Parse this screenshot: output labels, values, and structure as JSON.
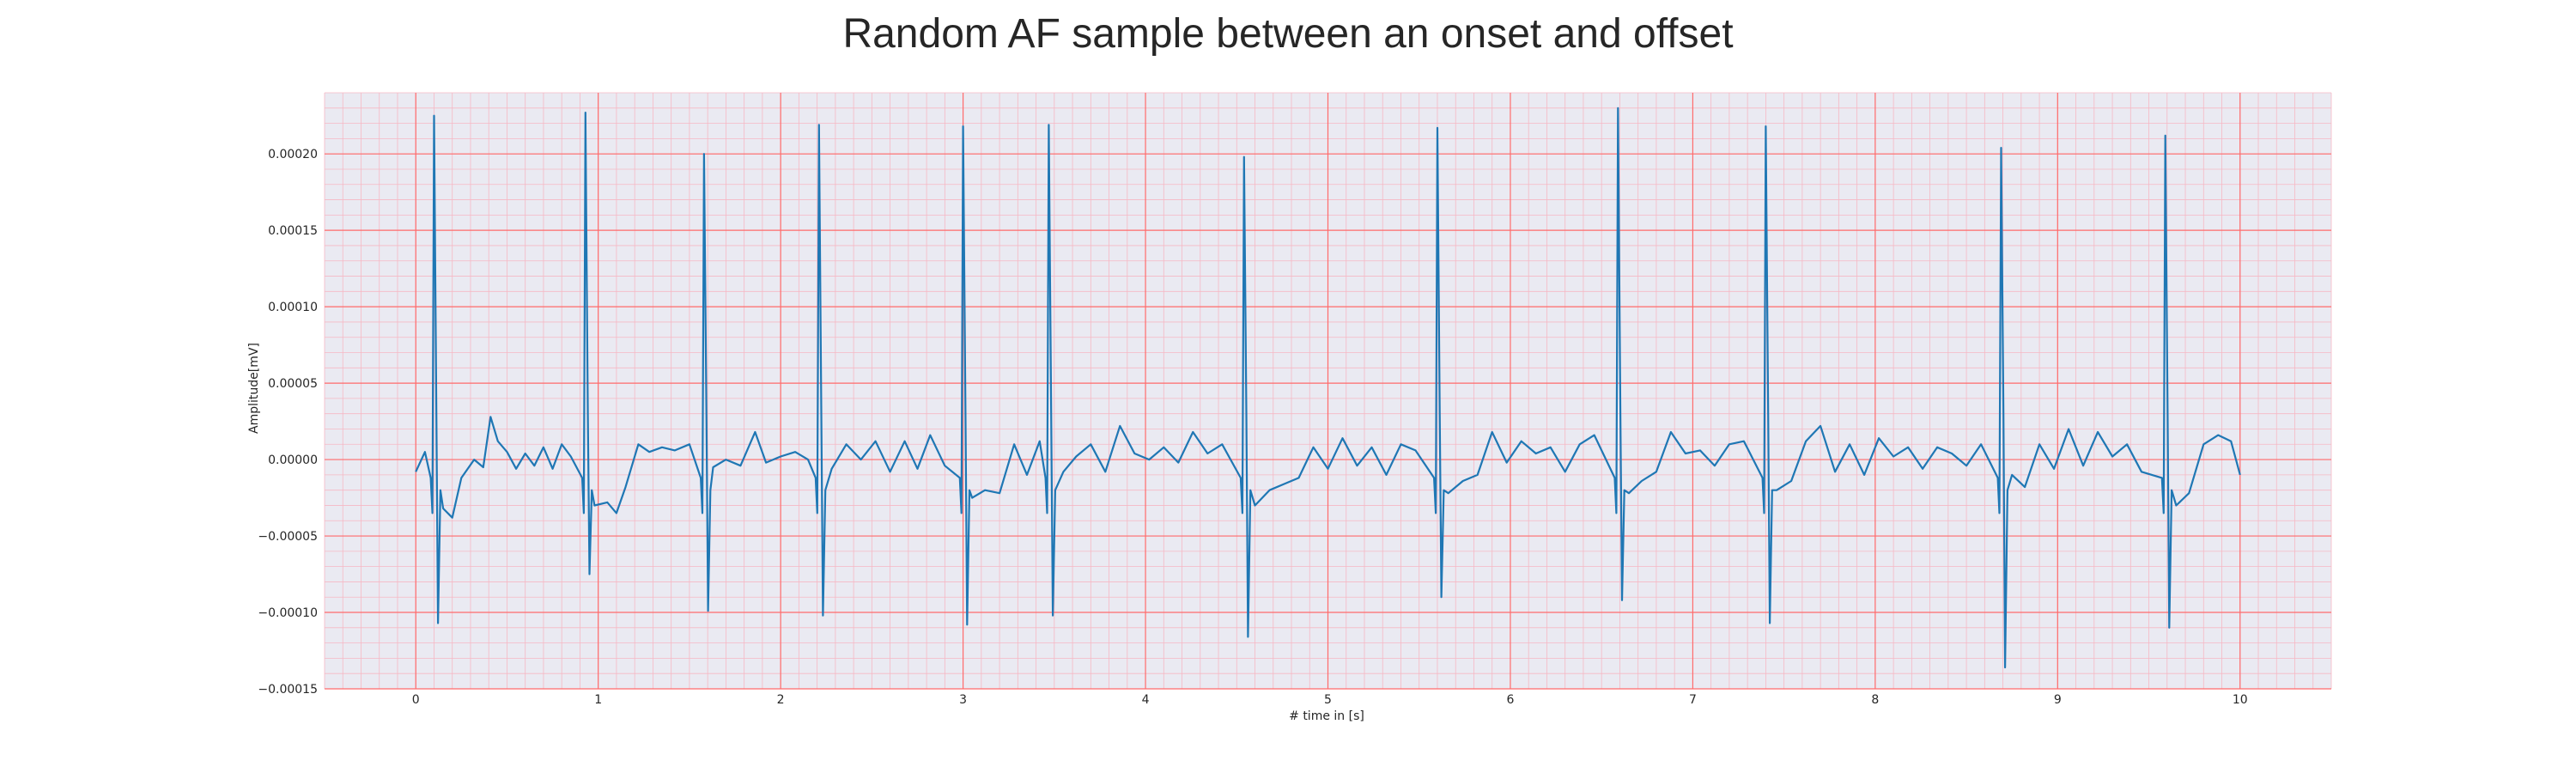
{
  "chart_data": {
    "type": "line",
    "title": "Random AF sample between an onset and offset",
    "xlabel": "# time in [s]",
    "ylabel": "Amplitude[mV]",
    "xlim": [
      -0.5,
      10.5
    ],
    "ylim": [
      -0.00015,
      0.00024
    ],
    "x_ticks": [
      0,
      1,
      2,
      3,
      4,
      5,
      6,
      7,
      8,
      9,
      10
    ],
    "x_tick_labels": [
      "0",
      "1",
      "2",
      "3",
      "4",
      "5",
      "6",
      "7",
      "8",
      "9",
      "10"
    ],
    "y_ticks": [
      -0.00015,
      -0.0001,
      -5e-05,
      0,
      5e-05,
      0.0001,
      0.00015,
      0.0002
    ],
    "y_tick_labels": [
      "−0.00015",
      "−0.00010",
      "−0.00005",
      "0.00000",
      "0.00005",
      "0.00010",
      "0.00015",
      "0.00020"
    ],
    "grid": true,
    "minor_grid": true,
    "colors": {
      "background": "#eaeaf2",
      "major_grid": "#ff6b6b",
      "minor_grid": "#f6b8c4",
      "line": "#1f77b4"
    },
    "series": [
      {
        "name": "",
        "beats": [
          {
            "t": 0.1,
            "r": 0.000225,
            "s": -0.000107
          },
          {
            "t": 0.93,
            "r": 0.000227,
            "s": -7.5e-05
          },
          {
            "t": 1.58,
            "r": 0.0002,
            "s": -9.9e-05
          },
          {
            "t": 2.21,
            "r": 0.000219,
            "s": -0.000102
          },
          {
            "t": 3.0,
            "r": 0.000218,
            "s": -0.000108
          },
          {
            "t": 3.47,
            "r": 0.000219,
            "s": -0.000102
          },
          {
            "t": 4.54,
            "r": 0.000198,
            "s": -0.000116
          },
          {
            "t": 5.6,
            "r": 0.000217,
            "s": -9e-05
          },
          {
            "t": 6.59,
            "r": 0.00023,
            "s": -9.2e-05
          },
          {
            "t": 7.4,
            "r": 0.000218,
            "s": -0.000107
          },
          {
            "t": 8.69,
            "r": 0.000204,
            "s": -0.000136
          },
          {
            "t": 9.59,
            "r": 0.000212,
            "s": -0.00011
          }
        ],
        "baseline": [
          [
            0.0,
            -8e-06
          ],
          [
            0.05,
            5e-06
          ],
          [
            0.15,
            -3.2e-05
          ],
          [
            0.2,
            -3.8e-05
          ],
          [
            0.25,
            -1.2e-05
          ],
          [
            0.32,
            0.0
          ],
          [
            0.37,
            -5e-06
          ],
          [
            0.41,
            2.8e-05
          ],
          [
            0.45,
            1.2e-05
          ],
          [
            0.5,
            5e-06
          ],
          [
            0.55,
            -6e-06
          ],
          [
            0.6,
            4e-06
          ],
          [
            0.65,
            -4e-06
          ],
          [
            0.7,
            8e-06
          ],
          [
            0.75,
            -6e-06
          ],
          [
            0.8,
            1e-05
          ],
          [
            0.85,
            2e-06
          ],
          [
            0.98,
            -3e-05
          ],
          [
            1.05,
            -2.8e-05
          ],
          [
            1.1,
            -3.5e-05
          ],
          [
            1.15,
            -1.8e-05
          ],
          [
            1.22,
            1e-05
          ],
          [
            1.28,
            5e-06
          ],
          [
            1.35,
            8e-06
          ],
          [
            1.42,
            6e-06
          ],
          [
            1.5,
            1e-05
          ],
          [
            1.63,
            -5e-06
          ],
          [
            1.7,
            0.0
          ],
          [
            1.78,
            -4e-06
          ],
          [
            1.86,
            1.8e-05
          ],
          [
            1.92,
            -2e-06
          ],
          [
            2.0,
            2e-06
          ],
          [
            2.08,
            5e-06
          ],
          [
            2.15,
            0.0
          ],
          [
            2.28,
            -6e-06
          ],
          [
            2.36,
            1e-05
          ],
          [
            2.44,
            0.0
          ],
          [
            2.52,
            1.2e-05
          ],
          [
            2.6,
            -8e-06
          ],
          [
            2.68,
            1.2e-05
          ],
          [
            2.75,
            -6e-06
          ],
          [
            2.82,
            1.6e-05
          ],
          [
            2.9,
            -4e-06
          ],
          [
            3.05,
            -2.5e-05
          ],
          [
            3.12,
            -2e-05
          ],
          [
            3.2,
            -2.2e-05
          ],
          [
            3.28,
            1e-05
          ],
          [
            3.35,
            -1e-05
          ],
          [
            3.42,
            1.2e-05
          ],
          [
            3.55,
            -8e-06
          ],
          [
            3.62,
            2e-06
          ],
          [
            3.7,
            1e-05
          ],
          [
            3.78,
            -8e-06
          ],
          [
            3.86,
            2.2e-05
          ],
          [
            3.94,
            4e-06
          ],
          [
            4.02,
            0.0
          ],
          [
            4.1,
            8e-06
          ],
          [
            4.18,
            -2e-06
          ],
          [
            4.26,
            1.8e-05
          ],
          [
            4.34,
            4e-06
          ],
          [
            4.42,
            1e-05
          ],
          [
            4.6,
            -3e-05
          ],
          [
            4.68,
            -2e-05
          ],
          [
            4.76,
            -1.6e-05
          ],
          [
            4.84,
            -1.2e-05
          ],
          [
            4.92,
            8e-06
          ],
          [
            5.0,
            -6e-06
          ],
          [
            5.08,
            1.4e-05
          ],
          [
            5.16,
            -4e-06
          ],
          [
            5.24,
            8e-06
          ],
          [
            5.32,
            -1e-05
          ],
          [
            5.4,
            1e-05
          ],
          [
            5.48,
            6e-06
          ],
          [
            5.66,
            -2.2e-05
          ],
          [
            5.74,
            -1.4e-05
          ],
          [
            5.82,
            -1e-05
          ],
          [
            5.9,
            1.8e-05
          ],
          [
            5.98,
            -2e-06
          ],
          [
            6.06,
            1.2e-05
          ],
          [
            6.14,
            4e-06
          ],
          [
            6.22,
            8e-06
          ],
          [
            6.3,
            -8e-06
          ],
          [
            6.38,
            1e-05
          ],
          [
            6.46,
            1.6e-05
          ],
          [
            6.65,
            -2.2e-05
          ],
          [
            6.72,
            -1.4e-05
          ],
          [
            6.8,
            -8e-06
          ],
          [
            6.88,
            1.8e-05
          ],
          [
            6.96,
            4e-06
          ],
          [
            7.04,
            6e-06
          ],
          [
            7.12,
            -4e-06
          ],
          [
            7.2,
            1e-05
          ],
          [
            7.28,
            1.2e-05
          ],
          [
            7.46,
            -2e-05
          ],
          [
            7.54,
            -1.4e-05
          ],
          [
            7.62,
            1.2e-05
          ],
          [
            7.7,
            2.2e-05
          ],
          [
            7.78,
            -8e-06
          ],
          [
            7.86,
            1e-05
          ],
          [
            7.94,
            -1e-05
          ],
          [
            8.02,
            1.4e-05
          ],
          [
            8.1,
            2e-06
          ],
          [
            8.18,
            8e-06
          ],
          [
            8.26,
            -6e-06
          ],
          [
            8.34,
            8e-06
          ],
          [
            8.42,
            4e-06
          ],
          [
            8.5,
            -4e-06
          ],
          [
            8.58,
            1e-05
          ],
          [
            8.75,
            -1e-05
          ],
          [
            8.82,
            -1.8e-05
          ],
          [
            8.9,
            1e-05
          ],
          [
            8.98,
            -6e-06
          ],
          [
            9.06,
            2e-05
          ],
          [
            9.14,
            -4e-06
          ],
          [
            9.22,
            1.8e-05
          ],
          [
            9.3,
            2e-06
          ],
          [
            9.38,
            1e-05
          ],
          [
            9.46,
            -8e-06
          ],
          [
            9.65,
            -3e-05
          ],
          [
            9.72,
            -2.2e-05
          ],
          [
            9.8,
            1e-05
          ],
          [
            9.88,
            1.6e-05
          ],
          [
            9.95,
            1.2e-05
          ],
          [
            10.0,
            -1e-05
          ]
        ]
      }
    ]
  }
}
